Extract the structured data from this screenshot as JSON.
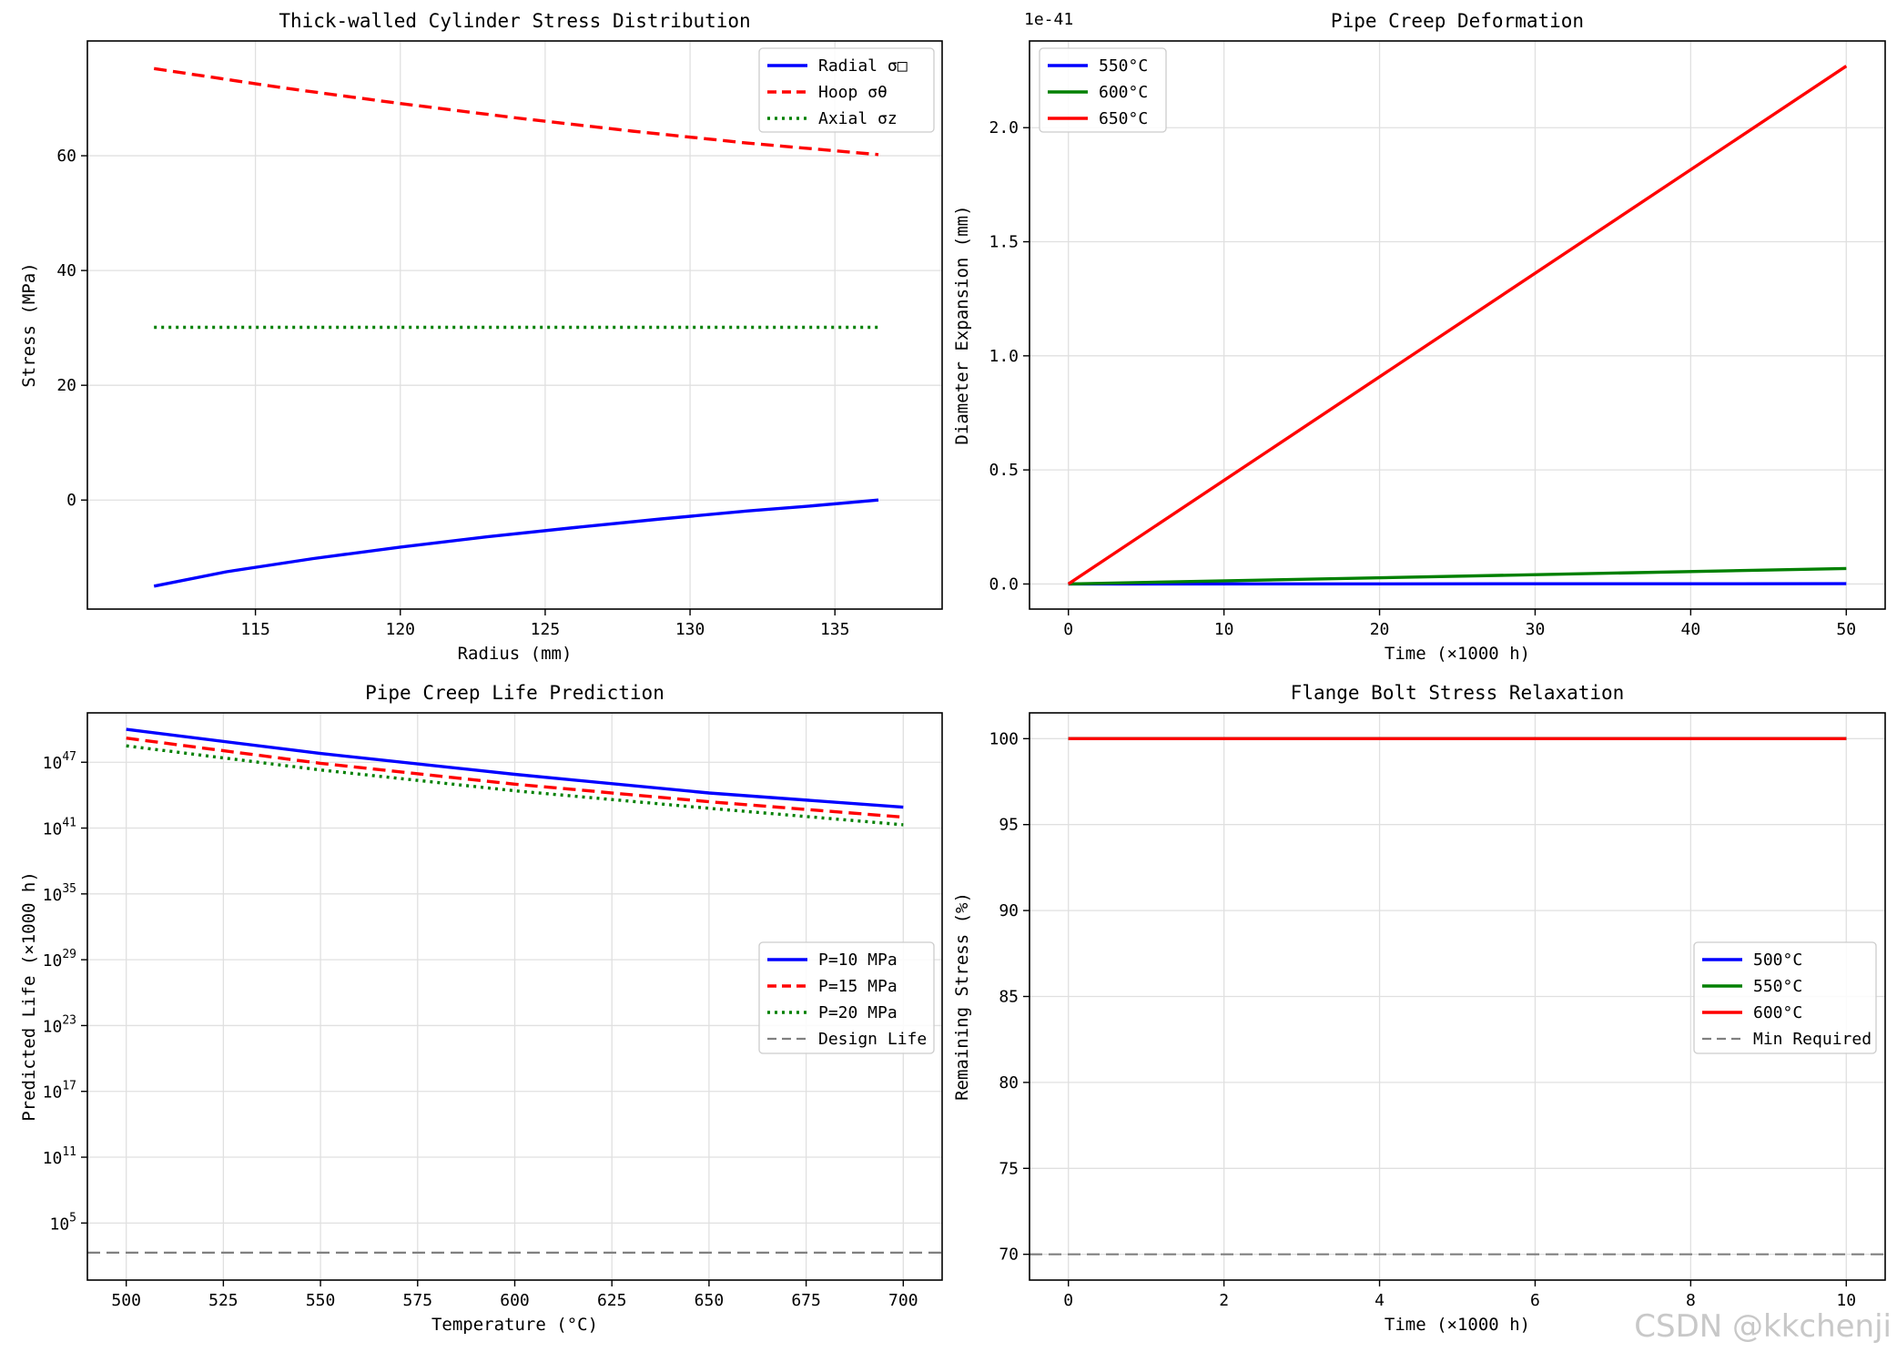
{
  "watermark": "CSDN @kkchenji",
  "chart_data": [
    {
      "id": "stress",
      "type": "line",
      "title": "Thick-walled Cylinder Stress Distribution",
      "xlabel": "Radius (mm)",
      "ylabel": "Stress (MPa)",
      "xlim": [
        109.2,
        138.7
      ],
      "ylim": [
        -19,
        80
      ],
      "xticks": [
        115,
        120,
        125,
        130,
        135
      ],
      "xtick_labels": [
        "115",
        "120",
        "125",
        "130",
        "135"
      ],
      "yticks": [
        0,
        20,
        40,
        60
      ],
      "ytick_labels": [
        "0",
        "20",
        "40",
        "60"
      ],
      "grid": true,
      "legend_position": "upper right",
      "series": [
        {
          "name": "Radial σ□",
          "color": "#0000ff",
          "style": "solid",
          "x": [
            111.5,
            114,
            117,
            120,
            123,
            126,
            129,
            132,
            134,
            136.5
          ],
          "y": [
            -15,
            -12.5,
            -10.2,
            -8.2,
            -6.4,
            -4.8,
            -3.3,
            -1.9,
            -1.1,
            0
          ]
        },
        {
          "name": "Hoop σθ",
          "color": "#ff0000",
          "style": "dashed",
          "x": [
            111.5,
            116,
            120,
            124,
            128,
            132,
            136.5
          ],
          "y": [
            75.2,
            71.8,
            69.1,
            66.6,
            64.3,
            62.2,
            60.2
          ]
        },
        {
          "name": "Axial σz",
          "color": "#008000",
          "style": "dotted",
          "x": [
            111.5,
            136.5
          ],
          "y": [
            30.1,
            30.1
          ]
        }
      ]
    },
    {
      "id": "creep",
      "type": "line",
      "title": "Pipe Creep Deformation",
      "xlabel": "Time (×1000 h)",
      "ylabel": "Diameter Expansion (mm)",
      "offset_label": "1e-41",
      "xlim": [
        -2.5,
        52.5
      ],
      "ylim": [
        -0.11,
        2.38
      ],
      "xticks": [
        0,
        10,
        20,
        30,
        40,
        50
      ],
      "xtick_labels": [
        "0",
        "10",
        "20",
        "30",
        "40",
        "50"
      ],
      "yticks": [
        0,
        0.5,
        1.0,
        1.5,
        2.0
      ],
      "ytick_labels": [
        "0.0",
        "0.5",
        "1.0",
        "1.5",
        "2.0"
      ],
      "grid": true,
      "legend_position": "upper left",
      "series": [
        {
          "name": "550°C",
          "color": "#0000ff",
          "style": "solid",
          "x": [
            0,
            50
          ],
          "y": [
            0,
            0.0015
          ]
        },
        {
          "name": "600°C",
          "color": "#008000",
          "style": "solid",
          "x": [
            0,
            50
          ],
          "y": [
            0,
            0.068
          ]
        },
        {
          "name": "650°C",
          "color": "#ff0000",
          "style": "solid",
          "x": [
            0,
            50
          ],
          "y": [
            0,
            2.27
          ]
        }
      ]
    },
    {
      "id": "life",
      "type": "line",
      "yscale": "log",
      "title": "Pipe Creep Life Prediction",
      "xlabel": "Temperature (°C)",
      "ylabel": "Predicted Life (×1000 h)",
      "xlim": [
        490,
        710
      ],
      "ylim_log10": [
        -0.2,
        51.5
      ],
      "xticks": [
        500,
        525,
        550,
        575,
        600,
        625,
        650,
        675,
        700
      ],
      "xtick_labels": [
        "500",
        "525",
        "550",
        "575",
        "600",
        "625",
        "650",
        "675",
        "700"
      ],
      "yticks_log10": [
        5,
        11,
        17,
        23,
        29,
        35,
        41,
        47
      ],
      "ytick_labels": [
        "10",
        "10",
        "10",
        "10",
        "10",
        "10",
        "10",
        "10"
      ],
      "ytick_exponents": [
        "5",
        "11",
        "17",
        "23",
        "29",
        "35",
        "41",
        "47"
      ],
      "grid": true,
      "legend_position": "center right",
      "series": [
        {
          "name": "P=10 MPa",
          "color": "#0000ff",
          "style": "solid",
          "x": [
            500,
            550,
            600,
            650,
            700
          ],
          "y_log10": [
            50.0,
            47.8,
            45.9,
            44.2,
            42.9
          ]
        },
        {
          "name": "P=15 MPa",
          "color": "#ff0000",
          "style": "dashed",
          "x": [
            500,
            550,
            600,
            650,
            700
          ],
          "y_log10": [
            49.2,
            46.9,
            45.0,
            43.4,
            42.0
          ]
        },
        {
          "name": "P=20 MPa",
          "color": "#008000",
          "style": "dotted",
          "x": [
            500,
            550,
            600,
            650,
            700
          ],
          "y_log10": [
            48.5,
            46.3,
            44.4,
            42.8,
            41.3
          ]
        },
        {
          "name": "Design Life",
          "color": "#808080",
          "style": "dashed",
          "x": [
            490,
            710
          ],
          "y_log10": [
            2.3,
            2.3
          ]
        }
      ]
    },
    {
      "id": "relax",
      "type": "line",
      "title": "Flange Bolt Stress Relaxation",
      "xlabel": "Time (×1000 h)",
      "ylabel": "Remaining Stress (%)",
      "xlim": [
        -0.5,
        10.5
      ],
      "ylim": [
        68.5,
        101.5
      ],
      "xticks": [
        0,
        2,
        4,
        6,
        8,
        10
      ],
      "xtick_labels": [
        "0",
        "2",
        "4",
        "6",
        "8",
        "10"
      ],
      "yticks": [
        70,
        75,
        80,
        85,
        90,
        95,
        100
      ],
      "ytick_labels": [
        "70",
        "75",
        "80",
        "85",
        "90",
        "95",
        "100"
      ],
      "grid": true,
      "legend_position": "center right",
      "series": [
        {
          "name": "500°C",
          "color": "#0000ff",
          "style": "solid",
          "x": [
            0,
            10
          ],
          "y": [
            100,
            100
          ]
        },
        {
          "name": "550°C",
          "color": "#008000",
          "style": "solid",
          "x": [
            0,
            10
          ],
          "y": [
            100,
            100
          ]
        },
        {
          "name": "600°C",
          "color": "#ff0000",
          "style": "solid",
          "x": [
            0,
            10
          ],
          "y": [
            100,
            100
          ]
        },
        {
          "name": "Min Required",
          "color": "#808080",
          "style": "dashed",
          "x": [
            -0.5,
            10.5
          ],
          "y": [
            70,
            70
          ]
        }
      ]
    }
  ]
}
